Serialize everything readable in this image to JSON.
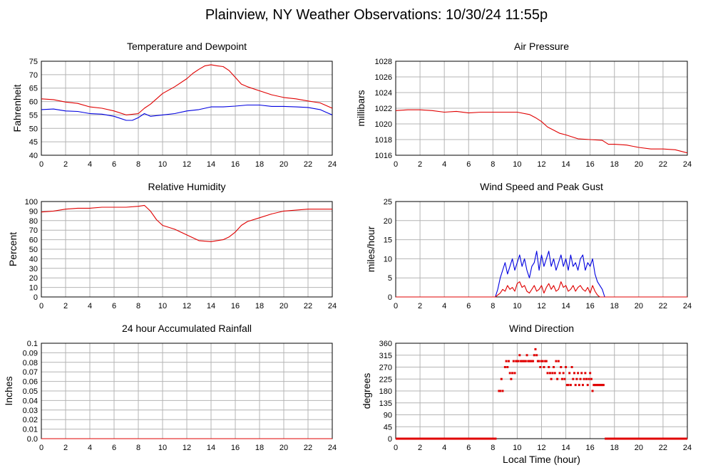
{
  "page_title": "Plainview, NY Weather Observations: 10/30/24 11:55p",
  "colors": {
    "red": "#e00000",
    "blue": "#0000e0",
    "grid": "#b4b4b4"
  },
  "chart_data": [
    {
      "id": "temp",
      "type": "line",
      "title": "Temperature and Dewpoint",
      "xlabel": "",
      "ylabel": "Fahrenheit",
      "xlim": [
        0,
        24
      ],
      "ylim": [
        40,
        75
      ],
      "yticks": [
        40,
        45,
        50,
        55,
        60,
        65,
        70,
        75
      ],
      "xticks": [
        0,
        2,
        4,
        6,
        8,
        10,
        12,
        14,
        16,
        18,
        20,
        22,
        24
      ],
      "series": [
        {
          "color": "#e00000",
          "x": [
            0,
            1,
            2,
            3,
            4,
            5,
            6,
            7,
            8,
            8.5,
            9,
            10,
            11,
            12,
            12.5,
            13,
            13.5,
            14,
            14.5,
            15,
            15.5,
            16,
            16.5,
            17,
            18,
            19,
            20,
            21,
            22,
            23,
            24
          ],
          "y": [
            61,
            60.7,
            59.8,
            59.3,
            58,
            57.5,
            56.5,
            55,
            55.5,
            57.5,
            59,
            63,
            65.5,
            68.5,
            70.5,
            72,
            73.3,
            73.7,
            73.3,
            73,
            71.5,
            69,
            66.5,
            65.5,
            64,
            62.5,
            61.5,
            61,
            60.2,
            59.5,
            57.5
          ]
        },
        {
          "color": "#0000e0",
          "x": [
            0,
            1,
            2,
            3,
            4,
            5,
            6,
            7,
            7.5,
            8,
            8.5,
            9,
            10,
            11,
            12,
            13,
            14,
            15,
            16,
            17,
            18,
            19,
            20,
            21,
            22,
            23,
            23.5,
            24
          ],
          "y": [
            57,
            57.2,
            56.5,
            56.3,
            55.5,
            55.3,
            54.5,
            53,
            53,
            54,
            55.5,
            54.5,
            55,
            55.5,
            56.5,
            57,
            58,
            58,
            58.3,
            58.7,
            58.7,
            58.2,
            58.2,
            58,
            57.8,
            57,
            56,
            55
          ]
        }
      ]
    },
    {
      "id": "pressure",
      "type": "line",
      "title": "Air Pressure",
      "xlabel": "",
      "ylabel": "millibars",
      "xlim": [
        0,
        24
      ],
      "ylim": [
        1016,
        1028
      ],
      "yticks": [
        1016,
        1018,
        1020,
        1022,
        1024,
        1026,
        1028
      ],
      "xticks": [
        0,
        2,
        4,
        6,
        8,
        10,
        12,
        14,
        16,
        18,
        20,
        22,
        24
      ],
      "series": [
        {
          "color": "#e00000",
          "x": [
            0,
            1,
            2,
            3,
            4,
            5,
            6,
            7,
            8,
            9,
            10,
            11,
            11.5,
            12,
            12.5,
            13,
            13.5,
            14,
            15,
            16,
            17,
            17.5,
            18,
            19,
            20,
            21,
            22,
            23,
            24
          ],
          "y": [
            1021.7,
            1021.8,
            1021.8,
            1021.7,
            1021.5,
            1021.6,
            1021.4,
            1021.5,
            1021.5,
            1021.5,
            1021.5,
            1021.2,
            1020.8,
            1020.3,
            1019.6,
            1019.2,
            1018.8,
            1018.6,
            1018.1,
            1018,
            1017.9,
            1017.4,
            1017.4,
            1017.3,
            1017,
            1016.8,
            1016.8,
            1016.7,
            1016.3
          ]
        }
      ]
    },
    {
      "id": "humidity",
      "type": "line",
      "title": "Relative Humidity",
      "xlabel": "",
      "ylabel": "Percent",
      "xlim": [
        0,
        24
      ],
      "ylim": [
        0,
        100
      ],
      "yticks": [
        0,
        10,
        20,
        30,
        40,
        50,
        60,
        70,
        80,
        90,
        100
      ],
      "xticks": [
        0,
        2,
        4,
        6,
        8,
        10,
        12,
        14,
        16,
        18,
        20,
        22,
        24
      ],
      "series": [
        {
          "color": "#e00000",
          "x": [
            0,
            1,
            2,
            3,
            4,
            5,
            6,
            7,
            8,
            8.5,
            9,
            9.5,
            10,
            11,
            12,
            12.5,
            13,
            14,
            15,
            15.5,
            16,
            16.5,
            17,
            18,
            19,
            20,
            21,
            22,
            23,
            24
          ],
          "y": [
            89,
            90,
            92,
            93,
            93,
            94,
            94,
            94,
            95,
            96,
            90,
            81,
            75,
            71,
            65,
            62,
            59,
            58,
            60,
            63,
            68,
            75,
            79,
            83,
            87,
            90,
            91,
            92,
            92,
            92
          ]
        }
      ]
    },
    {
      "id": "wind",
      "type": "line",
      "title": "Wind Speed and Peak Gust",
      "xlabel": "",
      "ylabel": "miles/hour",
      "xlim": [
        0,
        24
      ],
      "ylim": [
        0,
        25
      ],
      "yticks": [
        0,
        5,
        10,
        15,
        20,
        25
      ],
      "xticks": [
        0,
        2,
        4,
        6,
        8,
        10,
        12,
        14,
        16,
        18,
        20,
        22,
        24
      ],
      "series": [
        {
          "color": "#0000e0",
          "x": [
            0,
            8.2,
            8.4,
            8.6,
            8.8,
            9,
            9.2,
            9.4,
            9.6,
            9.8,
            10,
            10.2,
            10.4,
            10.6,
            10.8,
            11,
            11.2,
            11.4,
            11.6,
            11.8,
            12,
            12.2,
            12.4,
            12.6,
            12.8,
            13,
            13.2,
            13.4,
            13.6,
            13.8,
            14,
            14.2,
            14.4,
            14.6,
            14.8,
            15,
            15.2,
            15.4,
            15.6,
            15.8,
            16,
            16.2,
            16.4,
            16.6,
            16.8,
            17,
            17.2,
            24
          ],
          "y": [
            0,
            0,
            2,
            5,
            7,
            9,
            6,
            8,
            10,
            7,
            9,
            11,
            8,
            10,
            7,
            5,
            8,
            9,
            12,
            7,
            11,
            8,
            10,
            12,
            8,
            10,
            7,
            9,
            11,
            8,
            10,
            7,
            11,
            8,
            9,
            7,
            10,
            11,
            7,
            9,
            8,
            10,
            6,
            4,
            3,
            2,
            0,
            0
          ]
        },
        {
          "color": "#e00000",
          "x": [
            0,
            8.2,
            8.4,
            8.6,
            8.8,
            9,
            9.2,
            9.4,
            9.6,
            9.8,
            10,
            10.2,
            10.4,
            10.6,
            10.8,
            11,
            11.2,
            11.4,
            11.6,
            11.8,
            12,
            12.2,
            12.4,
            12.6,
            12.8,
            13,
            13.2,
            13.4,
            13.6,
            13.8,
            14,
            14.2,
            14.4,
            14.6,
            14.8,
            15,
            15.2,
            15.4,
            15.6,
            15.8,
            16,
            16.2,
            16.4,
            16.6,
            16.8,
            24
          ],
          "y": [
            0,
            0,
            0.5,
            1,
            2,
            1.5,
            3,
            2,
            2.5,
            1.5,
            3.5,
            4,
            2.5,
            3,
            1.5,
            1,
            2,
            3,
            1.5,
            2,
            3,
            1,
            2.5,
            3.5,
            2,
            3,
            1.5,
            2,
            4,
            2.5,
            3,
            1.5,
            2,
            3,
            1.5,
            2.5,
            3,
            2,
            1.5,
            2.5,
            1,
            3,
            1.5,
            0.5,
            0,
            0
          ]
        }
      ]
    },
    {
      "id": "rain",
      "type": "line",
      "title": "24 hour Accumulated Rainfall",
      "xlabel": "",
      "ylabel": "Inches",
      "xlim": [
        0,
        24
      ],
      "ylim": [
        0,
        0.1
      ],
      "yticks": [
        "0.0",
        "0.01",
        "0.02",
        "0.03",
        "0.04",
        "0.05",
        "0.06",
        "0.07",
        "0.08",
        "0.09",
        "0.1"
      ],
      "xticks": [
        0,
        2,
        4,
        6,
        8,
        10,
        12,
        14,
        16,
        18,
        20,
        22,
        24
      ],
      "series": [
        {
          "color": "#e00000",
          "x": [
            0,
            24
          ],
          "y": [
            0,
            0
          ]
        }
      ]
    },
    {
      "id": "direction",
      "type": "scatter",
      "title": "Wind Direction",
      "xlabel": "Local Time (hour)",
      "ylabel": "degrees",
      "xlim": [
        0,
        24
      ],
      "ylim": [
        0,
        360
      ],
      "yticks": [
        0,
        45,
        90,
        135,
        180,
        225,
        270,
        315,
        360
      ],
      "xticks": [
        0,
        2,
        4,
        6,
        8,
        10,
        12,
        14,
        16,
        18,
        20,
        22,
        24
      ],
      "calm_segments": [
        [
          0,
          8.3
        ],
        [
          17.2,
          24
        ]
      ],
      "calm_value": 0,
      "series": [
        {
          "color": "#e00000",
          "x": [
            8.5,
            8.6,
            8.7,
            8.8,
            9.0,
            9.1,
            9.2,
            9.3,
            9.4,
            9.5,
            9.6,
            9.7,
            9.8,
            9.9,
            10.0,
            10.1,
            10.2,
            10.3,
            10.4,
            10.5,
            10.6,
            10.7,
            10.8,
            10.9,
            11.0,
            11.1,
            11.2,
            11.3,
            11.4,
            11.5,
            11.6,
            11.7,
            11.8,
            11.9,
            12.0,
            12.1,
            12.2,
            12.3,
            12.4,
            12.5,
            12.6,
            12.7,
            12.8,
            12.9,
            13.0,
            13.1,
            13.2,
            13.3,
            13.4,
            13.5,
            13.6,
            13.7,
            13.8,
            13.9,
            14.0,
            14.1,
            14.2,
            14.3,
            14.4,
            14.5,
            14.6,
            14.7,
            14.8,
            14.9,
            15.0,
            15.1,
            15.2,
            15.3,
            15.4,
            15.5,
            15.6,
            15.7,
            15.8,
            15.9,
            16.0,
            16.1,
            16.2,
            16.3,
            16.4,
            16.5,
            16.6,
            16.7,
            16.8,
            16.9,
            17.0,
            17.1
          ],
          "y": [
            180,
            180,
            225,
            180,
            270,
            292.5,
            270,
            292.5,
            247.5,
            225,
            247.5,
            292.5,
            247.5,
            292.5,
            292.5,
            292.5,
            315,
            292.5,
            292.5,
            292.5,
            292.5,
            292.5,
            315,
            292.5,
            292.5,
            292.5,
            292.5,
            292.5,
            315,
            337.5,
            315,
            292.5,
            292.5,
            270,
            292.5,
            292.5,
            270,
            292.5,
            292.5,
            247.5,
            270,
            247.5,
            225,
            247.5,
            270,
            247.5,
            292.5,
            225,
            292.5,
            247.5,
            270,
            225,
            247.5,
            225,
            270,
            202.5,
            202.5,
            247.5,
            202.5,
            270,
            225,
            247.5,
            202.5,
            225,
            247.5,
            202.5,
            225,
            247.5,
            202.5,
            225,
            247.5,
            225,
            202.5,
            225,
            247.5,
            225,
            180,
            202.5,
            202.5,
            202.5,
            202.5,
            202.5,
            202.5,
            202.5,
            202.5,
            202.5
          ]
        }
      ]
    }
  ]
}
